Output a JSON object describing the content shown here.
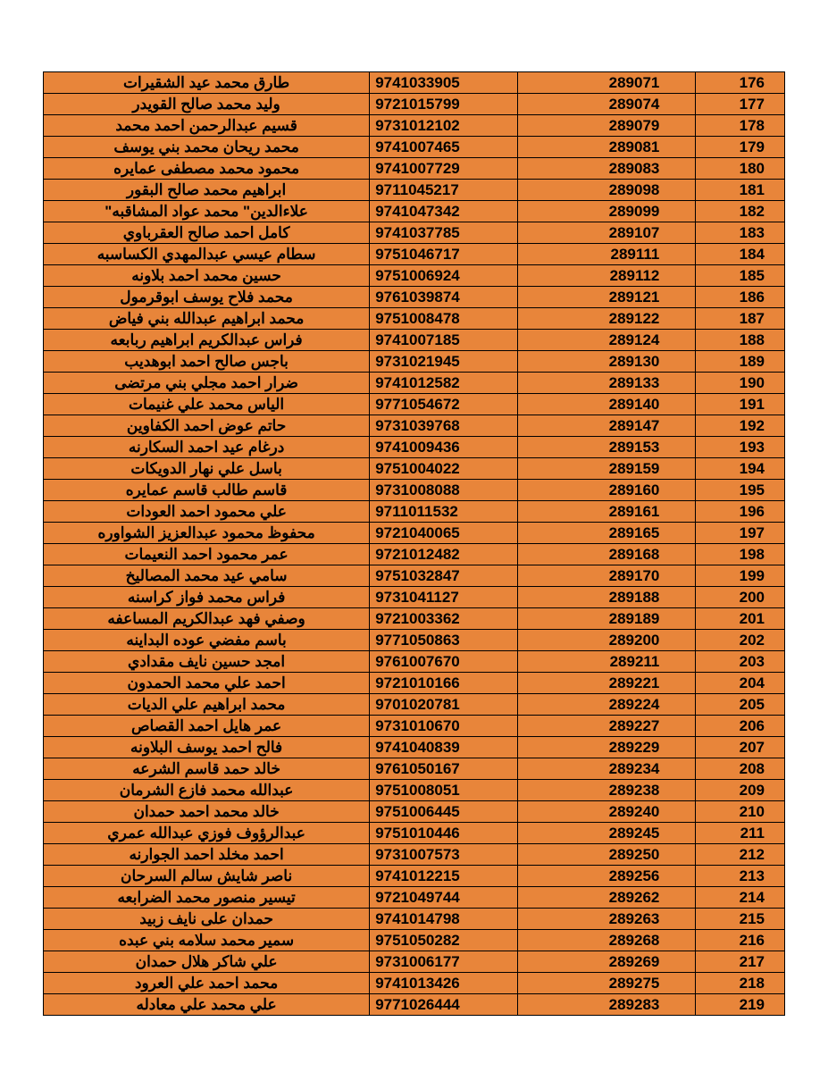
{
  "table": {
    "background_color": "#e8853a",
    "border_color": "#000000",
    "text_color": "#000000",
    "font_size_pt": 13,
    "font_weight": "bold",
    "columns": [
      "name",
      "id",
      "code",
      "index"
    ],
    "column_align": [
      "center",
      "left",
      "right",
      "right"
    ],
    "column_widths_pct": [
      44,
      20,
      24,
      12
    ],
    "rows": [
      {
        "index": "176",
        "code": "289071",
        "id": "9741033905",
        "name": "طارق محمد عيد الشقيرات"
      },
      {
        "index": "177",
        "code": "289074",
        "id": "9721015799",
        "name": "وليد محمد صالح القويدر"
      },
      {
        "index": "178",
        "code": "289079",
        "id": "9731012102",
        "name": "قسيم عبدالرحمن احمد محمد"
      },
      {
        "index": "179",
        "code": "289081",
        "id": "9741007465",
        "name": "محمد ريحان محمد بني يوسف"
      },
      {
        "index": "180",
        "code": "289083",
        "id": "9741007729",
        "name": "محمود محمد مصطفى عمايره"
      },
      {
        "index": "181",
        "code": "289098",
        "id": "9711045217",
        "name": "ابراهيم محمد صالح البقور"
      },
      {
        "index": "182",
        "code": "289099",
        "id": "9741047342",
        "name": "علاءالدين\" محمد عواد المشاقبه\""
      },
      {
        "index": "183",
        "code": "289107",
        "id": "9741037785",
        "name": "كامل احمد صالح العقرباوي"
      },
      {
        "index": "184",
        "code": "289111",
        "id": "9751046717",
        "name": "سطام عيسي عبدالمهدي الكساسبه"
      },
      {
        "index": "185",
        "code": "289112",
        "id": "9751006924",
        "name": "حسين محمد احمد بلاونه"
      },
      {
        "index": "186",
        "code": "289121",
        "id": "9761039874",
        "name": "محمد فلاح يوسف ابوقرمول"
      },
      {
        "index": "187",
        "code": "289122",
        "id": "9751008478",
        "name": "محمد ابراهيم عبدالله بني فياض"
      },
      {
        "index": "188",
        "code": "289124",
        "id": "9741007185",
        "name": "فراس عبدالكريم ابراهيم ربابعه"
      },
      {
        "index": "189",
        "code": "289130",
        "id": "9731021945",
        "name": "باجس صالح احمد ابوهديب"
      },
      {
        "index": "190",
        "code": "289133",
        "id": "9741012582",
        "name": "ضرار احمد مجلي بني مرتضى"
      },
      {
        "index": "191",
        "code": "289140",
        "id": "9771054672",
        "name": "الياس محمد علي غنيمات"
      },
      {
        "index": "192",
        "code": "289147",
        "id": "9731039768",
        "name": "حاتم عوض احمد الكفاوين"
      },
      {
        "index": "193",
        "code": "289153",
        "id": "9741009436",
        "name": "درغام عيد احمد السكارنه"
      },
      {
        "index": "194",
        "code": "289159",
        "id": "9751004022",
        "name": "باسل علي نهار الدويكات"
      },
      {
        "index": "195",
        "code": "289160",
        "id": "9731008088",
        "name": "قاسم طالب قاسم عمايره"
      },
      {
        "index": "196",
        "code": "289161",
        "id": "9711011532",
        "name": "علي محمود احمد العودات"
      },
      {
        "index": "197",
        "code": "289165",
        "id": "9721040065",
        "name": "محفوظ محمود عبدالعزيز الشواوره"
      },
      {
        "index": "198",
        "code": "289168",
        "id": "9721012482",
        "name": "عمر محمود احمد النعيمات"
      },
      {
        "index": "199",
        "code": "289170",
        "id": "9751032847",
        "name": "سامي عيد محمد المصاليخ"
      },
      {
        "index": "200",
        "code": "289188",
        "id": "9731041127",
        "name": "فراس محمد فواز كراسنه"
      },
      {
        "index": "201",
        "code": "289189",
        "id": "9721003362",
        "name": "وصفي فهد عبدالكريم المساعفه"
      },
      {
        "index": "202",
        "code": "289200",
        "id": "9771050863",
        "name": "باسم مفضي عوده البداينه"
      },
      {
        "index": "203",
        "code": "289211",
        "id": "9761007670",
        "name": "امجد حسين نايف مقدادي"
      },
      {
        "index": "204",
        "code": "289221",
        "id": "9721010166",
        "name": "احمد علي محمد الحمدون"
      },
      {
        "index": "205",
        "code": "289224",
        "id": "9701020781",
        "name": "محمد ابراهيم علي الديات"
      },
      {
        "index": "206",
        "code": "289227",
        "id": "9731010670",
        "name": "عمر هايل احمد القصاص"
      },
      {
        "index": "207",
        "code": "289229",
        "id": "9741040839",
        "name": "فالح احمد يوسف البلاونه"
      },
      {
        "index": "208",
        "code": "289234",
        "id": "9761050167",
        "name": "خالد حمد قاسم الشرعه"
      },
      {
        "index": "209",
        "code": "289238",
        "id": "9751008051",
        "name": "عبدالله محمد فازع الشرمان"
      },
      {
        "index": "210",
        "code": "289240",
        "id": "9751006445",
        "name": "خالد محمد احمد حمدان"
      },
      {
        "index": "211",
        "code": "289245",
        "id": "9751010446",
        "name": "عبدالرؤوف فوزي عبدالله عمري"
      },
      {
        "index": "212",
        "code": "289250",
        "id": "9731007573",
        "name": "احمد مخلد احمد الجوارنه"
      },
      {
        "index": "213",
        "code": "289256",
        "id": "9741012215",
        "name": "ناصر شايش سالم السرحان"
      },
      {
        "index": "214",
        "code": "289262",
        "id": "9721049744",
        "name": "تيسير منصور محمد الضرابعه"
      },
      {
        "index": "215",
        "code": "289263",
        "id": "9741014798",
        "name": "حمدان على نايف زبيد"
      },
      {
        "index": "216",
        "code": "289268",
        "id": "9751050282",
        "name": "سمير محمد سلامه بني عبده"
      },
      {
        "index": "217",
        "code": "289269",
        "id": "9731006177",
        "name": "علي شاكر هلال حمدان"
      },
      {
        "index": "218",
        "code": "289275",
        "id": "9741013426",
        "name": "محمد احمد علي العرود"
      },
      {
        "index": "219",
        "code": "289283",
        "id": "9771026444",
        "name": "علي محمد علي معادله"
      }
    ]
  }
}
